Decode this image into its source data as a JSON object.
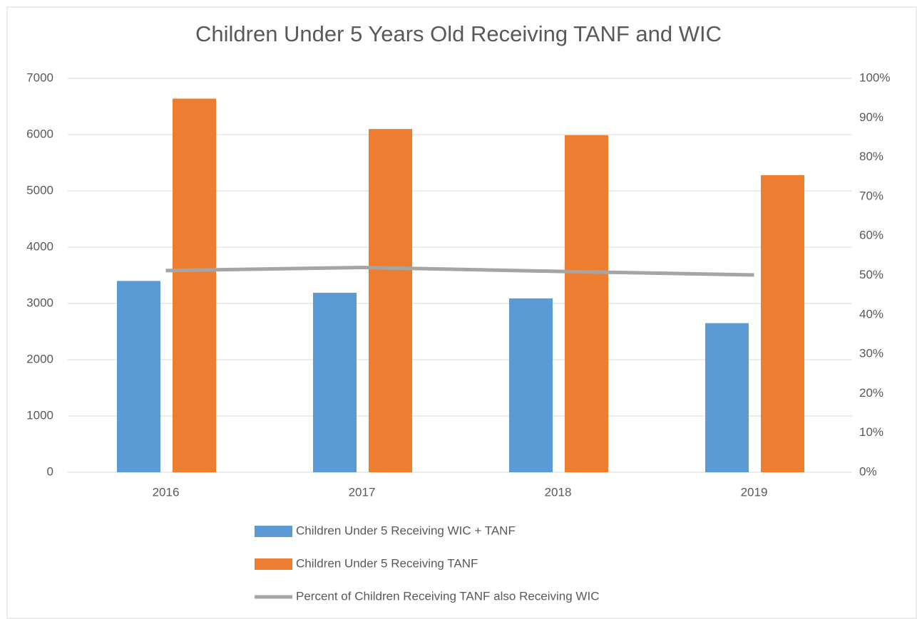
{
  "chart_data": {
    "type": "bar_line",
    "title": "Children Under 5 Years Old Receiving TANF and WIC",
    "categories": [
      "2016",
      "2017",
      "2018",
      "2019"
    ],
    "series": [
      {
        "name": "Children Under 5 Receiving WIC + TANF",
        "color": "#5b9bd5",
        "type": "bar",
        "values": [
          3400,
          3190,
          3090,
          2650
        ]
      },
      {
        "name": "Children Under 5 Receiving TANF",
        "color": "#ed7d31",
        "type": "bar",
        "values": [
          6640,
          6100,
          5990,
          5280
        ]
      },
      {
        "name": "Percent of Children Receiving TANF also Receiving WIC",
        "color": "#a5a5a5",
        "type": "line",
        "axis": "y2",
        "values": [
          51.2,
          52,
          51,
          50.1
        ]
      }
    ],
    "ylim": [
      0,
      7000
    ],
    "yticks": [
      0,
      1000,
      2000,
      3000,
      4000,
      5000,
      6000,
      7000
    ],
    "y2lim": [
      0,
      100
    ],
    "y2ticks": [
      {
        "value": 0,
        "label": "0%"
      },
      {
        "value": 10,
        "label": "10%"
      },
      {
        "value": 20,
        "label": "20%"
      },
      {
        "value": 30,
        "label": "30%"
      },
      {
        "value": 40,
        "label": "40%"
      },
      {
        "value": 50,
        "label": "50%"
      },
      {
        "value": 60,
        "label": "60%"
      },
      {
        "value": 70,
        "label": "70%"
      },
      {
        "value": 80,
        "label": "80%"
      },
      {
        "value": 90,
        "label": "90%"
      },
      {
        "value": 100,
        "label": "100%"
      }
    ],
    "grid": true,
    "legend": "bottom"
  }
}
